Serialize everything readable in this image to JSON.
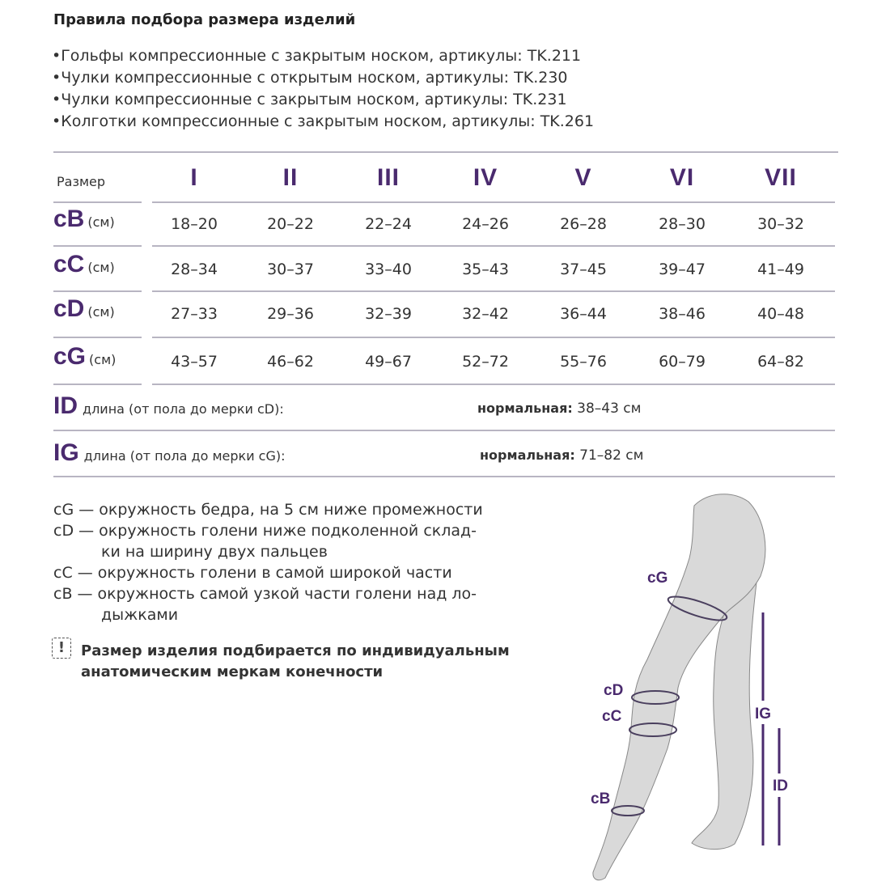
{
  "title": "Правила подбора размера изделий",
  "products": [
    "•Гольфы компрессионные с закрытым носком, артикулы: TK.211",
    "•Чулки компрессионные с открытым носком, артикулы: TK.230",
    "•Чулки компрессионные с закрытым носком, артикулы: TK.231",
    "•Колготки компрессионные с закрытым носком, артикулы: TK.261"
  ],
  "table": {
    "size_label": "Размер",
    "sizes": [
      "I",
      "II",
      "III",
      "IV",
      "V",
      "VI",
      "VII"
    ],
    "unit": "(см)",
    "rows": [
      {
        "code": "cB",
        "values": [
          "18–20",
          "20–22",
          "22–24",
          "24–26",
          "26–28",
          "28–30",
          "30–32"
        ]
      },
      {
        "code": "cC",
        "values": [
          "28–34",
          "30–37",
          "33–40",
          "35–43",
          "37–45",
          "39–47",
          "41–49"
        ]
      },
      {
        "code": "cD",
        "values": [
          "27–33",
          "29–36",
          "32–39",
          "32–42",
          "36–44",
          "38–46",
          "40–48"
        ]
      },
      {
        "code": "cG",
        "values": [
          "43–57",
          "46–62",
          "49–67",
          "52–72",
          "55–76",
          "60–79",
          "64–82"
        ]
      }
    ],
    "lengths": [
      {
        "code": "ID",
        "desc": "длина (от пола до мерки cD):",
        "norm_label": "нормальная:",
        "value": "38–43 см"
      },
      {
        "code": "IG",
        "desc": "длина (от пола до мерки cG):",
        "norm_label": "нормальная:",
        "value": "71–82 см"
      }
    ]
  },
  "legend": [
    "cG — окружность бедра, на 5 см ниже промежности",
    "cD — окружность голени ниже подколенной склад-",
    "ки на ширину двух пальцев",
    "cC — окружность голени в самой широкой части",
    "cB — окружность самой узкой части голени над ло-",
    "дыжками"
  ],
  "note": {
    "icon": "exclamation-box-icon",
    "lines": [
      "Размер изделия подбирается по индивидуальным",
      "анатомическим меркам конечности"
    ]
  },
  "diagram": {
    "labels": {
      "cG": "cG",
      "cD": "cD",
      "cC": "cC",
      "cB": "cB",
      "IG": "IG",
      "ID": "ID"
    }
  },
  "colors": {
    "accent": "#4a2a6e",
    "leg_fill": "#d9d9d9",
    "line": "#b8b5c2"
  }
}
